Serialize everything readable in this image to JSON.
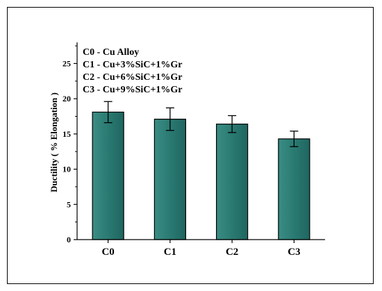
{
  "chart_data": {
    "type": "bar",
    "categories": [
      "C0",
      "C1",
      "C2",
      "C3"
    ],
    "values": [
      18.1,
      17.1,
      16.4,
      14.3
    ],
    "errors": [
      1.5,
      1.6,
      1.2,
      1.1
    ],
    "ylabel": "Ductility ( % Elongation )",
    "xlabel": "",
    "ylim": [
      0,
      28
    ],
    "yticks": [
      0,
      5,
      10,
      15,
      20,
      25
    ],
    "grid": false,
    "bar_color": "#2a7a72",
    "legend_position": "top-left",
    "legend_lines": [
      "C0 - Cu Alloy",
      "C1 - Cu+3%SiC+1%Gr",
      "C2 - Cu+6%SiC+1%Gr",
      "C3 - Cu+9%SiC+1%Gr"
    ]
  }
}
